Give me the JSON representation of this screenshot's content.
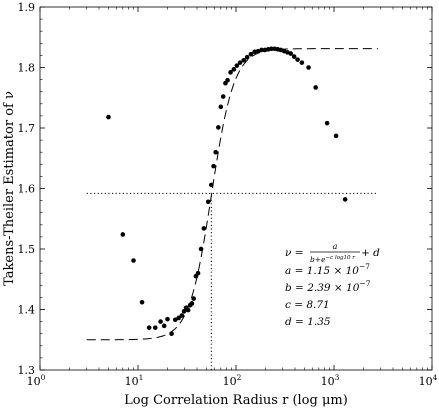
{
  "chart_data": {
    "type": "scatter",
    "xlabel": "Log Correlation Radius r (log μm)",
    "ylabel": "Takens-Theiler Estimator of ν",
    "xscale": "log",
    "xlim": [
      1,
      10000
    ],
    "ylim": [
      1.3,
      1.9
    ],
    "x_ticks": [
      1,
      10,
      100,
      1000,
      10000
    ],
    "x_tick_labels": [
      "10^0",
      "10^1",
      "10^2",
      "10^3",
      "10^4"
    ],
    "y_ticks": [
      1.3,
      1.4,
      1.5,
      1.6,
      1.7,
      1.8,
      1.9
    ],
    "y_tick_labels": [
      "1.3",
      "1.4",
      "1.5",
      "1.6",
      "1.7",
      "1.8",
      "1.9"
    ],
    "grid": false,
    "series": [
      {
        "marker": "dot",
        "color": "#000000",
        "x": [
          5.0,
          7.0,
          9.0,
          11.0,
          13.0,
          15.0,
          17.0,
          18.5,
          20.0,
          22.0,
          24.0,
          26.0,
          28.0,
          29.5,
          31.0,
          32.5,
          34.0,
          35.5,
          37.0,
          39.0,
          41.0,
          44.0,
          47.0,
          52.0,
          56.0,
          59.0,
          62.0,
          66.0,
          70.0,
          74.0,
          78.0,
          82.0,
          88.0,
          95.0,
          102.0,
          110.0,
          120.0,
          130.0,
          142.0,
          155.0,
          168.0,
          182.0,
          197.0,
          213.0,
          230.0,
          248.0,
          267.0,
          287.0,
          310.0,
          335.0,
          362.0,
          392.0,
          425.0,
          470.0,
          550.0,
          650.0,
          850.0,
          1050.0,
          1300.0
        ],
        "y": [
          1.718,
          1.524,
          1.481,
          1.412,
          1.37,
          1.37,
          1.38,
          1.373,
          1.384,
          1.36,
          1.383,
          1.386,
          1.39,
          1.397,
          1.403,
          1.399,
          1.407,
          1.41,
          1.418,
          1.455,
          1.46,
          1.5,
          1.534,
          1.578,
          1.606,
          1.637,
          1.66,
          1.701,
          1.735,
          1.752,
          1.774,
          1.779,
          1.792,
          1.797,
          1.803,
          1.808,
          1.812,
          1.817,
          1.822,
          1.826,
          1.827,
          1.829,
          1.829,
          1.83,
          1.831,
          1.831,
          1.83,
          1.829,
          1.827,
          1.825,
          1.823,
          1.818,
          1.813,
          1.808,
          1.8,
          1.767,
          1.708,
          1.687,
          1.582
        ]
      },
      {
        "style": "dashed",
        "color": "#000000",
        "x_range": [
          3,
          2800
        ],
        "formula": "nu = a/(b + e^(-c log10 r)) + d",
        "a": 1.15e-07,
        "b": 2.39e-07,
        "c": 8.71,
        "d": 1.35
      }
    ],
    "reference_lines": [
      {
        "orientation": "horizontal",
        "style": "dotted",
        "y": 1.592,
        "x_range": [
          3,
          2800
        ]
      },
      {
        "orientation": "vertical",
        "style": "dotted",
        "x": 56,
        "y_range": [
          1.3,
          1.592
        ]
      }
    ],
    "annotation": {
      "formula_lhs": "ν = ",
      "formula_num": "a",
      "formula_den": "b+e",
      "formula_exp": "−c log10 r",
      "formula_rhs": " + d",
      "lines": [
        "a = 1.15 × 10",
        "b = 2.39 × 10",
        "c = 8.71",
        "d = 1.35"
      ],
      "exponent": "−7"
    }
  }
}
